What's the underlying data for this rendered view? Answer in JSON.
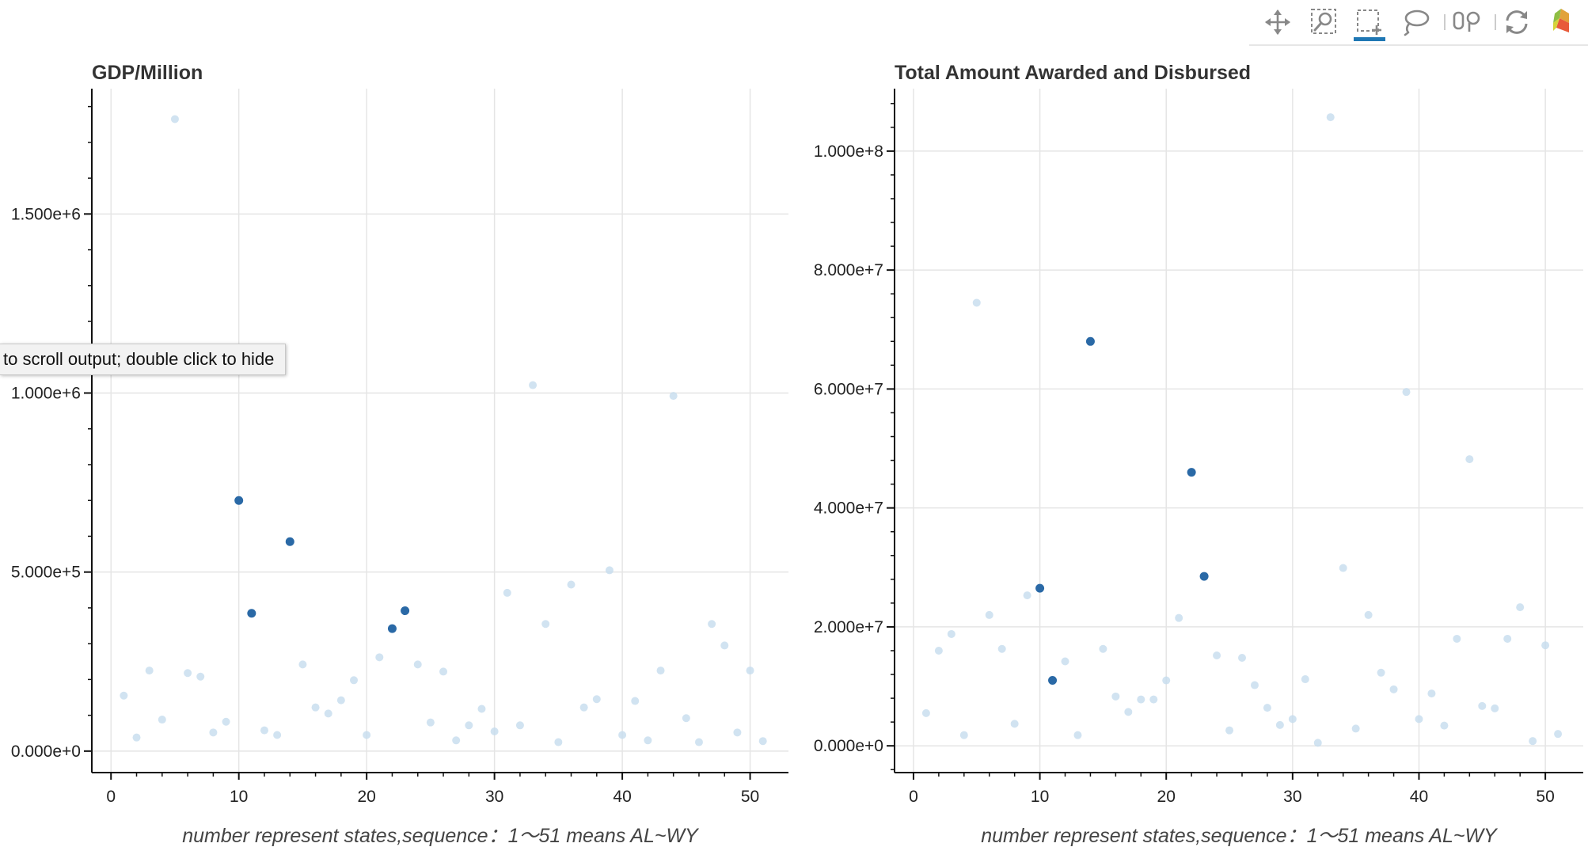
{
  "tooltip": {
    "text": "to scroll output; double click to hide"
  },
  "toolbar": {
    "tools": [
      {
        "name": "pan-icon",
        "active": false
      },
      {
        "name": "wheel-zoom-icon",
        "active": false
      },
      {
        "name": "box-select-icon",
        "active": true
      },
      {
        "name": "lasso-select-icon",
        "active": false
      },
      {
        "name": "hover-icon",
        "active": false
      },
      {
        "name": "reset-icon",
        "active": false
      },
      {
        "name": "bokeh-logo-icon",
        "active": false
      }
    ],
    "active_color": "#1f77b4"
  },
  "colors": {
    "selected": "#2a69a6",
    "unselected": "#c5dced",
    "grid": "#e5e5e5",
    "axis": "#111111"
  },
  "chart_data": [
    {
      "type": "scatter",
      "title": "GDP/Million",
      "xlabel": "number represent states,sequence：1～51 means AL~WY",
      "ylabel": "",
      "xlim": [
        -1.5,
        53
      ],
      "ylim": [
        -60000,
        1850000
      ],
      "xticks": [
        0,
        10,
        20,
        30,
        40,
        50
      ],
      "yticks": [
        0,
        500000,
        1000000,
        1500000
      ],
      "ytick_labels": [
        "0.000e+0",
        "5.000e+5",
        "1.000e+6",
        "1.500e+6"
      ],
      "grid": true,
      "x": [
        1,
        2,
        3,
        4,
        5,
        6,
        7,
        8,
        9,
        10,
        11,
        12,
        13,
        14,
        15,
        16,
        17,
        18,
        19,
        20,
        21,
        22,
        23,
        24,
        25,
        26,
        27,
        28,
        29,
        30,
        31,
        32,
        33,
        34,
        35,
        36,
        37,
        38,
        39,
        40,
        41,
        42,
        43,
        44,
        45,
        46,
        47,
        48,
        49,
        50,
        51
      ],
      "y": [
        155000,
        38000,
        225000,
        88000,
        1765000,
        218000,
        208000,
        52000,
        82000,
        700000,
        385000,
        58000,
        45000,
        585000,
        242000,
        122000,
        105000,
        142000,
        198000,
        45000,
        262000,
        342000,
        392000,
        242000,
        80000,
        222000,
        30000,
        72000,
        118000,
        55000,
        442000,
        72000,
        1022000,
        355000,
        25000,
        465000,
        122000,
        145000,
        505000,
        45000,
        140000,
        30000,
        225000,
        992000,
        92000,
        25000,
        355000,
        295000,
        52000,
        225000,
        28000
      ],
      "selected": [
        10,
        11,
        14,
        22,
        23
      ]
    },
    {
      "type": "scatter",
      "title": "Total Amount Awarded and Disbursed",
      "xlabel": "number represent states,sequence：1～51 means AL~WY",
      "ylabel": "",
      "xlim": [
        -1.5,
        53
      ],
      "ylim": [
        -4500000,
        110500000
      ],
      "xticks": [
        0,
        10,
        20,
        30,
        40,
        50
      ],
      "yticks": [
        0,
        20000000,
        40000000,
        60000000,
        80000000,
        100000000
      ],
      "ytick_labels": [
        "0.000e+0",
        "2.000e+7",
        "4.000e+7",
        "6.000e+7",
        "8.000e+7",
        "1.000e+8"
      ],
      "grid": true,
      "x": [
        1,
        2,
        3,
        4,
        5,
        6,
        7,
        8,
        9,
        10,
        11,
        12,
        13,
        14,
        15,
        16,
        17,
        18,
        19,
        20,
        21,
        22,
        23,
        24,
        25,
        26,
        27,
        28,
        29,
        30,
        31,
        32,
        33,
        34,
        35,
        36,
        37,
        38,
        39,
        40,
        41,
        42,
        43,
        44,
        45,
        46,
        47,
        48,
        49,
        50,
        51
      ],
      "y": [
        5500000,
        16000000,
        18800000,
        1800000,
        74500000,
        22000000,
        16300000,
        3700000,
        25300000,
        26500000,
        11000000,
        14200000,
        1800000,
        68000000,
        16300000,
        8300000,
        5700000,
        7800000,
        7800000,
        11000000,
        21500000,
        46000000,
        28500000,
        15200000,
        2600000,
        14800000,
        10200000,
        6400000,
        3500000,
        4500000,
        11200000,
        500000,
        105700000,
        29900000,
        2900000,
        22000000,
        12300000,
        9500000,
        59500000,
        4500000,
        8800000,
        3400000,
        18000000,
        48200000,
        6700000,
        6300000,
        18000000,
        23300000,
        800000,
        16900000,
        2000000
      ],
      "selected": [
        10,
        11,
        14,
        22,
        23
      ]
    }
  ]
}
